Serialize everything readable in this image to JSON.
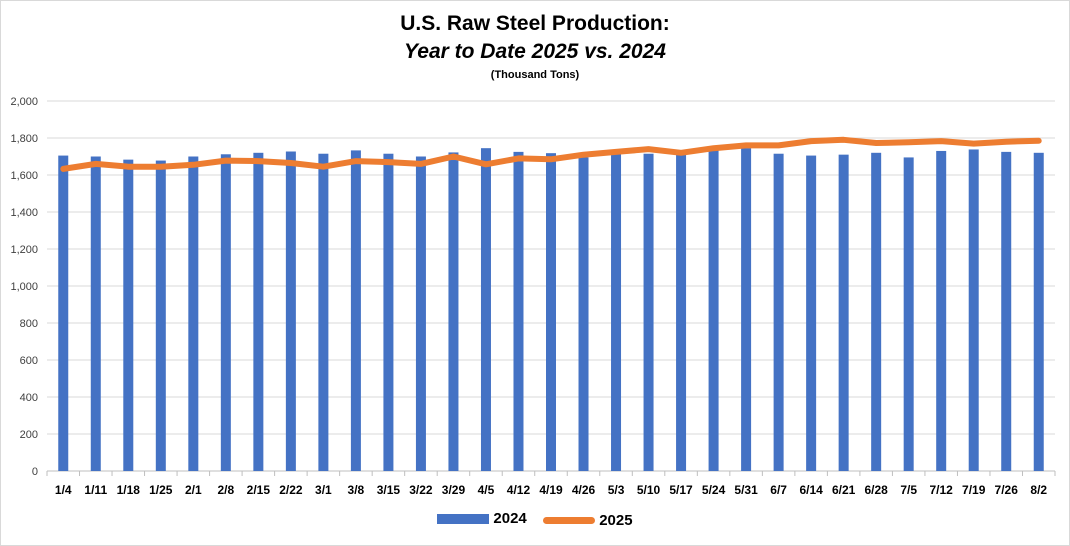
{
  "chart_data": {
    "type": "bar",
    "title": "U.S. Raw Steel Production:",
    "subtitle": "Year to Date 2025 vs. 2024",
    "units": "(Thousand Tons)",
    "categories": [
      "1/4",
      "1/11",
      "1/18",
      "1/25",
      "2/1",
      "2/8",
      "2/15",
      "2/22",
      "3/1",
      "3/8",
      "3/15",
      "3/22",
      "3/29",
      "4/5",
      "4/12",
      "4/19",
      "4/26",
      "5/3",
      "5/10",
      "5/17",
      "5/24",
      "5/31",
      "6/7",
      "6/14",
      "6/21",
      "6/28",
      "7/5",
      "7/12",
      "7/19",
      "7/26",
      "8/2"
    ],
    "ylim": [
      0,
      2000
    ],
    "yticks": [
      0,
      200,
      400,
      600,
      800,
      1000,
      1200,
      1400,
      1600,
      1800,
      2000
    ],
    "ytick_labels": [
      "0",
      "200",
      "400",
      "600",
      "800",
      "1,000",
      "1,200",
      "1,400",
      "1,600",
      "1,800",
      "2,000"
    ],
    "grid": true,
    "legend_position": "bottom",
    "series": [
      {
        "name": "2024",
        "type": "bar",
        "color": "#4472c4",
        "values": [
          1705,
          1700,
          1683,
          1678,
          1700,
          1712,
          1720,
          1727,
          1715,
          1733,
          1715,
          1700,
          1722,
          1745,
          1725,
          1718,
          1695,
          1712,
          1715,
          1715,
          1735,
          1745,
          1715,
          1705,
          1710,
          1720,
          1695,
          1730,
          1738,
          1725,
          1720
        ]
      },
      {
        "name": "2025",
        "type": "line",
        "color": "#ed7d31",
        "values": [
          1633,
          1660,
          1645,
          1645,
          1655,
          1678,
          1675,
          1665,
          1645,
          1675,
          1670,
          1660,
          1700,
          1658,
          1690,
          1685,
          1710,
          1725,
          1740,
          1720,
          1745,
          1760,
          1760,
          1783,
          1790,
          1773,
          1777,
          1783,
          1770,
          1780,
          1785
        ]
      }
    ]
  }
}
